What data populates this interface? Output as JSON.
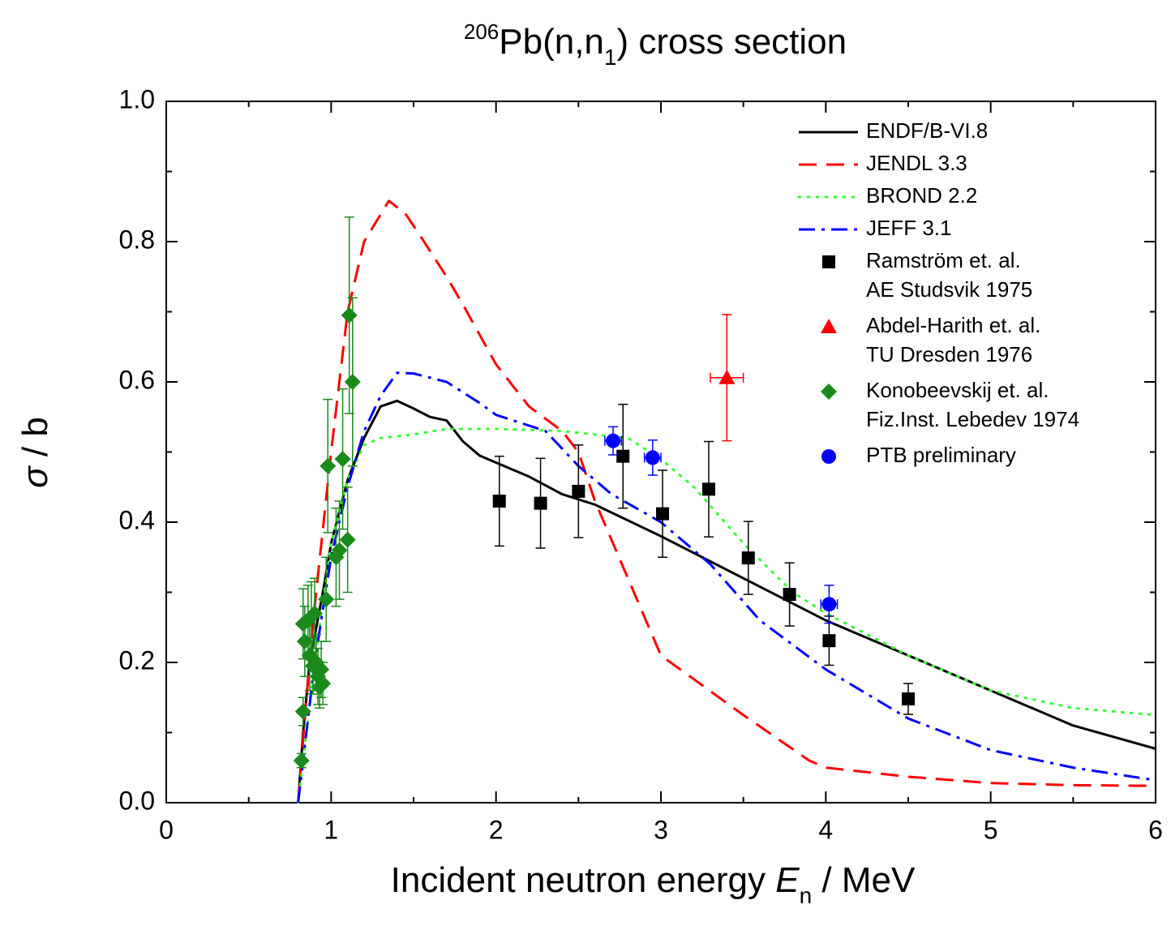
{
  "chart_data": {
    "type": "line",
    "title_parts": [
      "206",
      "Pb(n,n",
      "1",
      ") cross section"
    ],
    "x_label_parts": [
      "Incident neutron energy ",
      "E",
      "n",
      " / MeV"
    ],
    "y_label_parts": [
      "σ",
      " / b"
    ],
    "xlim": [
      0,
      6
    ],
    "ylim": [
      0,
      1
    ],
    "xticks": [
      0,
      1,
      2,
      3,
      4,
      5,
      6
    ],
    "yticks": [
      {
        "value": 0,
        "label": "0.0"
      },
      0.2,
      0.4,
      0.6,
      0.8,
      {
        "value": 1,
        "label": "1.0"
      }
    ],
    "xminor_ticks": [
      0.5,
      1.5,
      2.5,
      3.5,
      4.5,
      5.5
    ],
    "yminor_ticks": [
      0.1,
      0.3,
      0.5,
      0.7,
      0.9
    ],
    "grid": false,
    "legend": "upper right",
    "series": [
      {
        "name": "ENDF/B-VI.8",
        "type": "line",
        "dash": "solid",
        "color": "#000000",
        "x": [
          0.8,
          0.83,
          0.87,
          0.95,
          1.0,
          1.1,
          1.2,
          1.3,
          1.4,
          1.5,
          1.6,
          1.7,
          1.8,
          1.9,
          2.0,
          2.2,
          2.4,
          2.6,
          3.0,
          3.5,
          4.0,
          4.5,
          5.0,
          5.5,
          6.0
        ],
        "values": [
          0.0,
          0.1,
          0.2,
          0.3,
          0.37,
          0.46,
          0.52,
          0.565,
          0.573,
          0.562,
          0.55,
          0.545,
          0.515,
          0.495,
          0.485,
          0.465,
          0.44,
          0.425,
          0.38,
          0.32,
          0.26,
          0.21,
          0.16,
          0.11,
          0.077
        ]
      },
      {
        "name": "JENDL 3.3",
        "type": "line",
        "dash": "dashed",
        "color": "#ff0000",
        "x": [
          0.8,
          0.85,
          0.9,
          1.0,
          1.05,
          1.1,
          1.2,
          1.35,
          1.45,
          1.55,
          1.7,
          1.8,
          2.0,
          2.2,
          2.4,
          2.5,
          2.6,
          2.8,
          3.0,
          3.5,
          3.9,
          4.0,
          4.5,
          5.0,
          5.5,
          6.0
        ],
        "values": [
          0.0,
          0.15,
          0.28,
          0.5,
          0.6,
          0.7,
          0.8,
          0.858,
          0.84,
          0.805,
          0.75,
          0.71,
          0.625,
          0.565,
          0.53,
          0.5,
          0.43,
          0.32,
          0.21,
          0.125,
          0.06,
          0.05,
          0.037,
          0.028,
          0.025,
          0.024
        ]
      },
      {
        "name": "BROND 2.2",
        "type": "line",
        "dash": "dotted",
        "color": "#33ff33",
        "x": [
          0.8,
          0.85,
          0.9,
          1.0,
          1.1,
          1.2,
          1.3,
          1.5,
          1.7,
          2.0,
          2.4,
          2.6,
          2.8,
          3.0,
          3.2,
          3.5,
          3.8,
          4.0,
          4.5,
          5.0,
          5.5,
          6.0
        ],
        "values": [
          0.0,
          0.1,
          0.2,
          0.37,
          0.46,
          0.51,
          0.52,
          0.525,
          0.533,
          0.533,
          0.53,
          0.525,
          0.52,
          0.49,
          0.45,
          0.37,
          0.3,
          0.27,
          0.21,
          0.16,
          0.135,
          0.125
        ]
      },
      {
        "name": "JEFF 3.1",
        "type": "line",
        "dash": "dashdot",
        "color": "#0000ff",
        "x": [
          0.8,
          0.85,
          0.9,
          1.0,
          1.1,
          1.2,
          1.3,
          1.4,
          1.5,
          1.7,
          1.9,
          2.0,
          2.3,
          2.5,
          2.7,
          3.0,
          3.3,
          3.6,
          4.0,
          4.5,
          5.0,
          5.5,
          6.0
        ],
        "values": [
          0.0,
          0.1,
          0.2,
          0.35,
          0.45,
          0.53,
          0.58,
          0.613,
          0.612,
          0.6,
          0.57,
          0.553,
          0.53,
          0.48,
          0.44,
          0.4,
          0.34,
          0.26,
          0.19,
          0.12,
          0.075,
          0.05,
          0.032
        ]
      },
      {
        "name": [
          "Ramström et. al.",
          "AE Studsvik 1975"
        ],
        "type": "scatter",
        "marker": "square",
        "color": "#000000",
        "x": [
          2.02,
          2.27,
          2.5,
          2.77,
          3.01,
          3.29,
          3.53,
          3.78,
          4.02,
          4.5
        ],
        "values": [
          0.43,
          0.427,
          0.444,
          0.494,
          0.412,
          0.447,
          0.349,
          0.297,
          0.231,
          0.148
        ],
        "errors": [
          0.064,
          0.064,
          0.066,
          0.074,
          0.062,
          0.068,
          0.052,
          0.045,
          0.035,
          0.022
        ]
      },
      {
        "name": [
          "Abdel-Harith et. al.",
          "TU Dresden 1976"
        ],
        "type": "scatter",
        "marker": "triangle",
        "color": "#ff0000",
        "x": [
          3.4
        ],
        "values": [
          0.606
        ],
        "errors": [
          0.09
        ],
        "x_errors": [
          0.1
        ]
      },
      {
        "name": [
          "Konobeevskij et. al.",
          "Fiz.Inst. Lebedev 1974"
        ],
        "type": "scatter",
        "marker": "diamond",
        "color": "#1a8a1a",
        "x": [
          0.82,
          0.83,
          0.83,
          0.84,
          0.86,
          0.87,
          0.88,
          0.89,
          0.9,
          0.91,
          0.92,
          0.93,
          0.94,
          0.95,
          0.97,
          0.98,
          1.03,
          1.05,
          1.07,
          1.1,
          1.11,
          1.13
        ],
        "values": [
          0.06,
          0.13,
          0.255,
          0.23,
          0.26,
          0.21,
          0.265,
          0.195,
          0.27,
          0.2,
          0.18,
          0.165,
          0.19,
          0.17,
          0.29,
          0.48,
          0.35,
          0.36,
          0.49,
          0.375,
          0.695,
          0.6
        ],
        "errors": [
          0.01,
          0.02,
          0.05,
          0.05,
          0.05,
          0.05,
          0.05,
          0.04,
          0.05,
          0.04,
          0.04,
          0.03,
          0.04,
          0.03,
          0.06,
          0.095,
          0.07,
          0.07,
          0.1,
          0.075,
          0.14,
          0.12
        ]
      },
      {
        "name": "PTB preliminary",
        "type": "scatter",
        "marker": "circle",
        "color": "#0000ff",
        "x": [
          2.71,
          2.95,
          4.02
        ],
        "values": [
          0.516,
          0.492,
          0.283
        ],
        "errors": [
          0.02,
          0.025,
          0.027
        ],
        "x_errors": [
          0.05,
          0.05,
          0.05
        ]
      }
    ]
  }
}
